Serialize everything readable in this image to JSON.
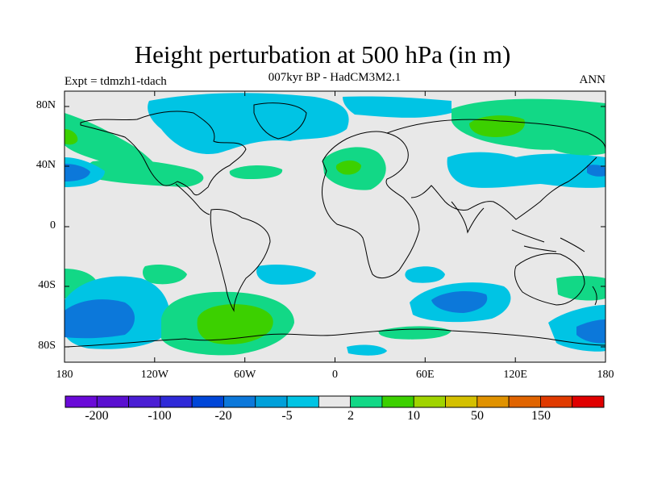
{
  "title": "Height perturbation at 500 hPa (in m)",
  "subtitle": "007kyr BP - HadCM3M2.1",
  "left_label": "Expt = tdmzh1-tdach",
  "right_label": "ANN",
  "lat_labels": [
    "80N",
    "40N",
    "0",
    "40S",
    "80S"
  ],
  "lon_labels": [
    "180",
    "120W",
    "60W",
    "0",
    "60E",
    "120E",
    "180"
  ],
  "colorbar": {
    "colors": [
      "#6a0ad8",
      "#5a10d0",
      "#4a1ed4",
      "#2f2ad8",
      "#0046d8",
      "#0c78da",
      "#00a0da",
      "#00c4e4",
      "#e8e8e8",
      "#12d886",
      "#3cd000",
      "#a0d400",
      "#d4c000",
      "#e09200",
      "#e06400",
      "#e03a00",
      "#e00000"
    ],
    "labels": [
      "-200",
      "-100",
      "-20",
      "-5",
      "2",
      "10",
      "50",
      "150"
    ]
  },
  "legend_values": {
    "negative": [
      "-200",
      "-100",
      "-20",
      "-5"
    ],
    "positive": [
      "2",
      "10",
      "50",
      "150"
    ]
  }
}
